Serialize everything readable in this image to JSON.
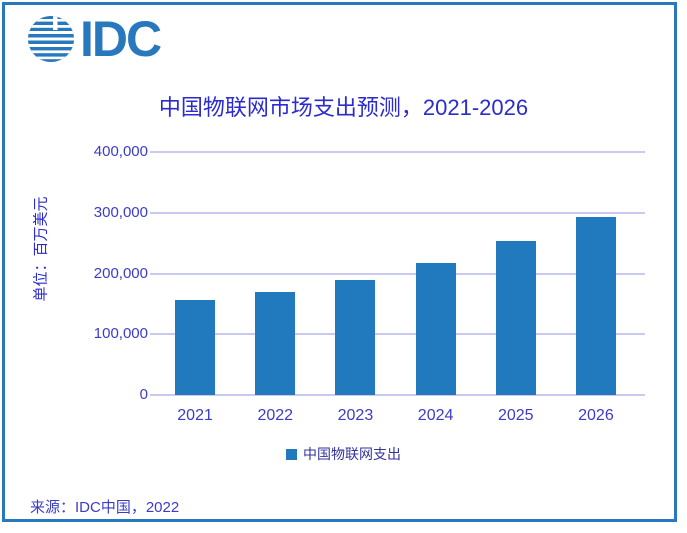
{
  "logo": {
    "text": "IDC",
    "icon": "globe-stripes-icon",
    "color": "#2878BE"
  },
  "title": "中国物联网市场支出预测，2021-2026",
  "y_axis": {
    "unit_label": "单位：百万美元"
  },
  "legend": {
    "label": "中国物联网支出",
    "marker_color": "#217ABE"
  },
  "source": "来源：IDC中国，2022",
  "colors": {
    "bar": "#217ABE",
    "frame": "#2878BE",
    "gridline": "#C9C9F2",
    "title_text": "#2B2BCF",
    "axis_text": "#3B3BCC"
  },
  "chart_data": {
    "type": "bar",
    "title": "中国物联网市场支出预测，2021-2026",
    "categories": [
      "2021",
      "2022",
      "2023",
      "2024",
      "2025",
      "2026"
    ],
    "series": [
      {
        "name": "中国物联网支出",
        "values": [
          156000,
          170000,
          190000,
          217000,
          253000,
          293000
        ]
      }
    ],
    "xlabel": "",
    "ylabel": "单位：百万美元",
    "ylim": [
      0,
      400000
    ],
    "yticks": [
      0,
      100000,
      200000,
      300000,
      400000
    ],
    "grid": true,
    "legend_position": "bottom",
    "values_are_estimated_from_pixels": true
  }
}
